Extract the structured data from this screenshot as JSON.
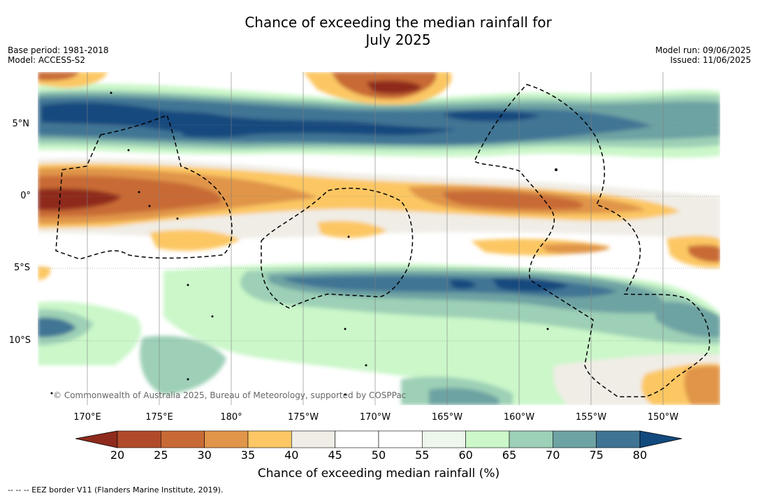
{
  "title": {
    "line1": "Chance of exceeding the median rainfall for",
    "line2": "July 2025"
  },
  "meta": {
    "base_period": "Base period: 1981-2018",
    "model": "Model: ACCESS-S2",
    "model_run": "Model run: 09/06/2025",
    "issued": "Issued: 11/06/2025"
  },
  "map": {
    "lat_labels": [
      "5°N",
      "0°",
      "5°S",
      "10°S"
    ],
    "lon_labels": [
      "170°E",
      "175°E",
      "180°",
      "175°W",
      "170°W",
      "165°W",
      "160°W",
      "155°W",
      "150°W"
    ],
    "copyright": "© Commonwealth of Australia 2025, Bureau of Meteorology, supported by COSPPac",
    "colors": {
      "c15": "#8e2b1c",
      "c20": "#b04a2a",
      "c25": "#c86a36",
      "c30": "#e0954a",
      "c35": "#fcc764",
      "c40": "#f0ede6",
      "c45": "#ffffff",
      "c55": "#eef7ec",
      "c60": "#cbf7c9",
      "c65": "#9dd0b6",
      "c70": "#6ea3a3",
      "c75": "#3f7494",
      "c80": "#124a7e"
    }
  },
  "colorbar": {
    "ticks": [
      "20",
      "25",
      "30",
      "35",
      "40",
      "45",
      "50",
      "55",
      "60",
      "65",
      "70",
      "75",
      "80"
    ],
    "colors": [
      "#b04a2a",
      "#c86a36",
      "#e0954a",
      "#fcc764",
      "#f0ede6",
      "#ffffff",
      "#ffffff",
      "#eef7ec",
      "#cbf7c9",
      "#9dd0b6",
      "#6ea3a3",
      "#3f7494"
    ],
    "low_color": "#8e2b1c",
    "high_color": "#124a7e",
    "label": "Chance of exceeding median rainfall (%)"
  },
  "footnote": "--  --  -- EEZ border V11 (Flanders Marine Institute, 2019)."
}
